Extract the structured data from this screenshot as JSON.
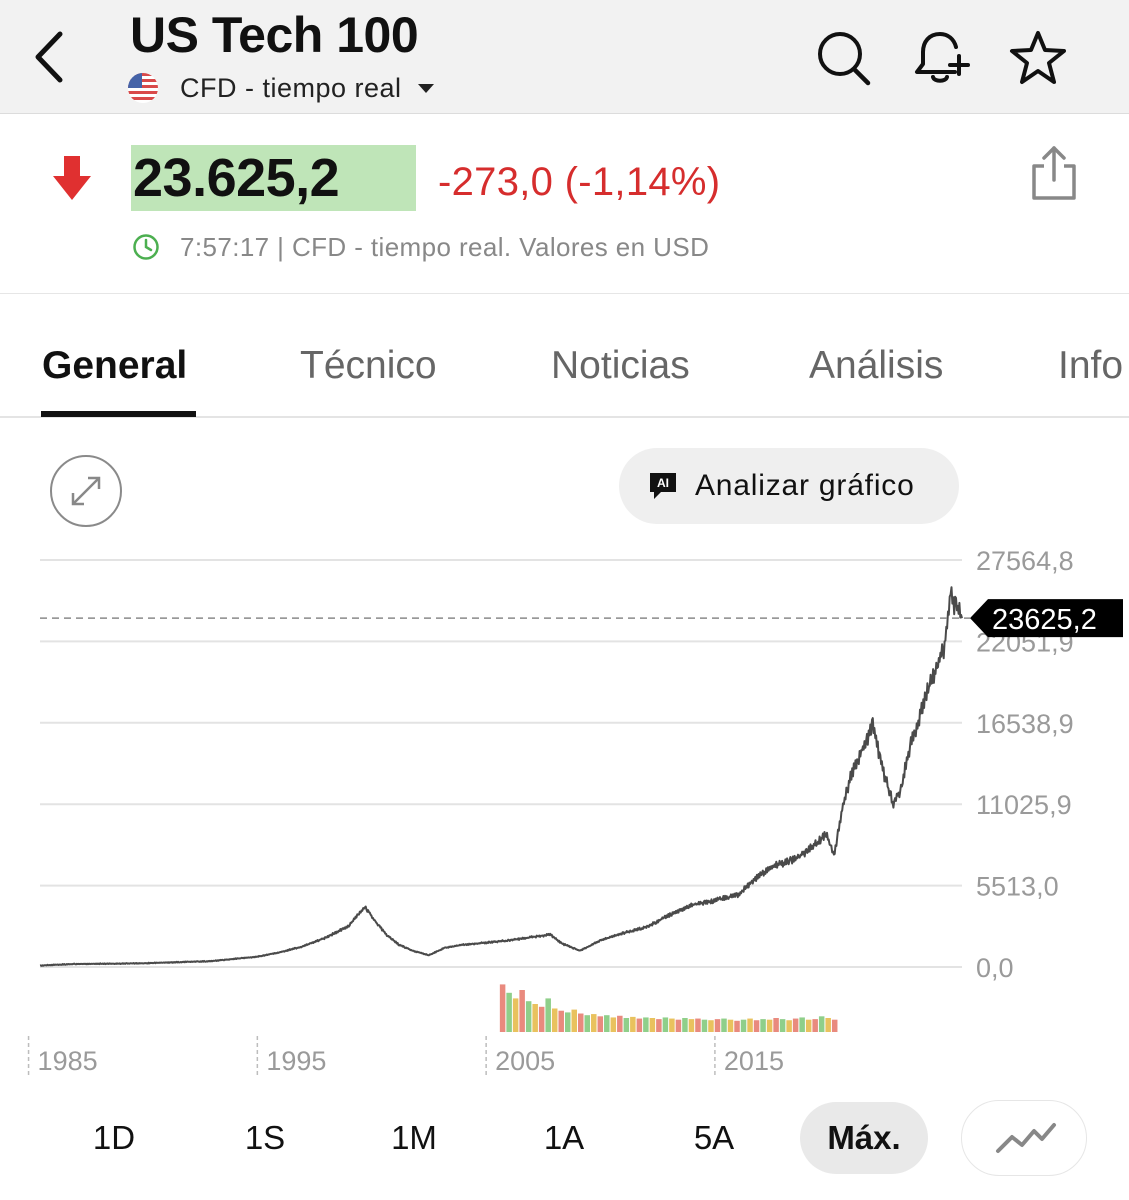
{
  "header": {
    "title": "US Tech 100",
    "subtitle": "CFD - tiempo real",
    "icons": [
      "back-icon",
      "search-icon",
      "bell-plus-icon",
      "star-icon"
    ]
  },
  "quote": {
    "price": "23.625,2",
    "change": "-273,0 (-1,14%)",
    "timestamp": "7:57:17 | CFD - tiempo real. Valores en USD",
    "colors": {
      "negative": "#d62d2d",
      "price_highlight": "#bfe5b8",
      "clock": "#4caf50"
    }
  },
  "tabs": [
    {
      "label": "General",
      "active": true
    },
    {
      "label": "Técnico",
      "active": false
    },
    {
      "label": "Noticias",
      "active": false
    },
    {
      "label": "Análisis",
      "active": false
    },
    {
      "label": "Info",
      "active": false
    }
  ],
  "chart_toolbar": {
    "ai_badge": "AI",
    "ai_button": "Analizar gráfico"
  },
  "chart_data": {
    "type": "line",
    "y_ticks": [
      0,
      5513.0,
      11025.9,
      16538.9,
      22051.9,
      27564.8
    ],
    "y_tick_labels": [
      "0,0",
      "5513,0",
      "11025,9",
      "16538,9",
      "22051,9",
      "27564,8"
    ],
    "ylim": [
      0,
      27564.8
    ],
    "x_tick_labels": [
      "1985",
      "1995",
      "2005",
      "2015"
    ],
    "x_range": [
      1985.5,
      2025.8
    ],
    "current_value": 23625.2,
    "current_label": "23625,2",
    "series": [
      {
        "x": [
          1985.5,
          1987,
          1990,
          1993,
          1995,
          1996,
          1997,
          1998,
          1999,
          1999.7,
          2000.2,
          2000.7,
          2001.2,
          2001.8,
          2002.5,
          2003.2,
          2004,
          2006,
          2007.8,
          2008.3,
          2009.1,
          2010,
          2011,
          2012,
          2013,
          2014,
          2015,
          2016,
          2016.8,
          2017.5,
          2018.3,
          2019,
          2019.9,
          2020.2,
          2020.6,
          2021,
          2021.9,
          2022.3,
          2022.8,
          2023.1,
          2023.6,
          2024,
          2024.5,
          2025,
          2025.3,
          2025.5,
          2025.8
        ],
        "y": [
          100,
          200,
          250,
          400,
          700,
          1000,
          1400,
          2000,
          2800,
          4100,
          3000,
          2100,
          1500,
          1100,
          800,
          1300,
          1500,
          1800,
          2200,
          1600,
          1100,
          1800,
          2300,
          2700,
          3500,
          4200,
          4500,
          4900,
          6000,
          6800,
          7200,
          7800,
          9000,
          7500,
          11000,
          13200,
          16300,
          13500,
          11000,
          12000,
          15300,
          17200,
          19600,
          21500,
          25500,
          24400,
          23625.2
        ]
      }
    ],
    "volume": {
      "x_start": 2005.6,
      "x_end": 2020.4,
      "values": [
        0.85,
        0.7,
        0.6,
        0.75,
        0.55,
        0.5,
        0.45,
        0.6,
        0.42,
        0.38,
        0.35,
        0.4,
        0.33,
        0.3,
        0.32,
        0.28,
        0.3,
        0.26,
        0.29,
        0.25,
        0.27,
        0.24,
        0.26,
        0.25,
        0.23,
        0.26,
        0.24,
        0.22,
        0.25,
        0.23,
        0.24,
        0.22,
        0.21,
        0.23,
        0.24,
        0.22,
        0.2,
        0.22,
        0.24,
        0.21,
        0.23,
        0.22,
        0.25,
        0.23,
        0.21,
        0.24,
        0.26,
        0.22,
        0.23,
        0.28,
        0.25,
        0.22
      ],
      "colors": [
        "#e98a7e",
        "#8fcf8a",
        "#e9c25e"
      ]
    },
    "grid": true,
    "line_color": "#4a4a4a",
    "dashed_reference_line": true
  },
  "range_buttons": [
    {
      "label": "1D",
      "active": false
    },
    {
      "label": "1S",
      "active": false
    },
    {
      "label": "1M",
      "active": false
    },
    {
      "label": "1A",
      "active": false
    },
    {
      "label": "5A",
      "active": false
    },
    {
      "label": "Máx.",
      "active": true
    }
  ],
  "chart_type_icon": "line-chart-icon"
}
